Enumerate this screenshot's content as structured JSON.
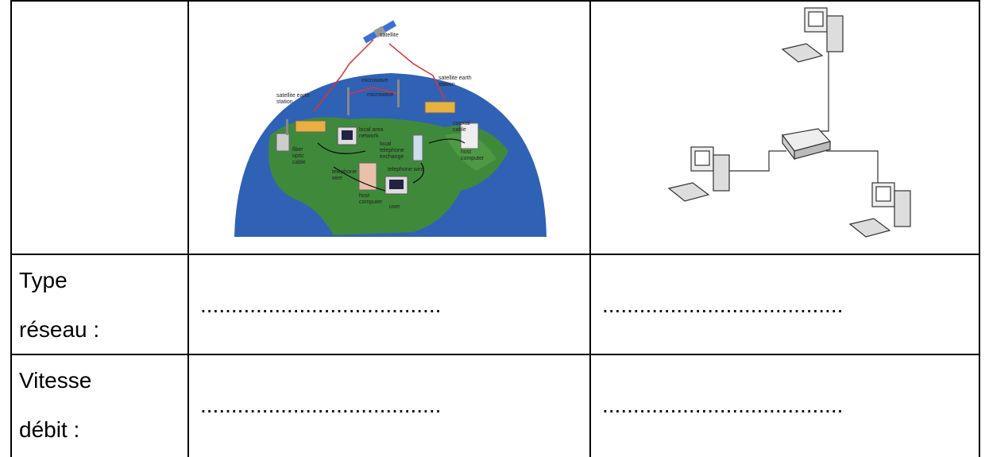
{
  "wan_diagram": {
    "labels": [
      [
        "satellite"
      ],
      [
        "satellite earth",
        "station"
      ],
      [
        "microwave"
      ],
      [
        "microwave"
      ],
      [
        "satellite earth",
        "station"
      ],
      [
        "local area",
        "network"
      ],
      [
        "coaxial",
        "cable"
      ],
      [
        "fiber",
        "optic",
        "cable"
      ],
      [
        "local",
        "telephone",
        "exchange"
      ],
      [
        "host",
        "computer"
      ],
      [
        "telephone wire"
      ],
      [
        "telephone",
        "wire"
      ],
      [
        "host",
        "computer"
      ],
      [
        "user"
      ]
    ]
  },
  "table": {
    "rows": [
      {
        "label": "Type réseau :",
        "answers": [
          ".......................................",
          "......................................."
        ]
      },
      {
        "label": "Vitesse débit :",
        "answers": [
          ".......................................",
          "......................................."
        ]
      }
    ]
  }
}
